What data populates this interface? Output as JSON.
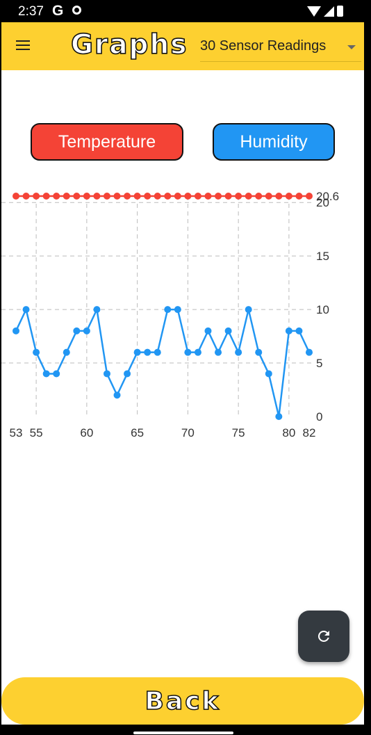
{
  "status": {
    "time": "2:37",
    "google": "G"
  },
  "appbar": {
    "title": "Graphs",
    "dropdown": "30 Sensor Readings"
  },
  "buttons": {
    "temperature": "Temperature",
    "humidity": "Humidity",
    "back": "Back"
  },
  "colors": {
    "accent": "#fdd030",
    "temperature": "#f44336",
    "humidity": "#2196f3"
  },
  "chart_data": {
    "type": "line",
    "x": [
      53,
      54,
      55,
      56,
      57,
      58,
      59,
      60,
      61,
      62,
      63,
      64,
      65,
      66,
      67,
      68,
      69,
      70,
      71,
      72,
      73,
      74,
      75,
      76,
      77,
      78,
      79,
      80,
      81,
      82
    ],
    "series": [
      {
        "name": "Temperature",
        "color": "#f44336",
        "values": [
          20.6,
          20.6,
          20.6,
          20.6,
          20.6,
          20.6,
          20.6,
          20.6,
          20.6,
          20.6,
          20.6,
          20.6,
          20.6,
          20.6,
          20.6,
          20.6,
          20.6,
          20.6,
          20.6,
          20.6,
          20.6,
          20.6,
          20.6,
          20.6,
          20.6,
          20.6,
          20.6,
          20.6,
          20.6,
          20.6
        ]
      },
      {
        "name": "Humidity",
        "color": "#2196f3",
        "values": [
          8,
          10,
          6,
          4,
          4,
          6,
          8,
          8,
          10,
          4,
          2,
          4,
          6,
          6,
          6,
          10,
          10,
          6,
          6,
          8,
          6,
          8,
          6,
          10,
          6,
          4,
          0,
          8,
          8,
          6
        ]
      }
    ],
    "xticks": [
      "53",
      "55",
      "60",
      "65",
      "70",
      "75",
      "80",
      "82"
    ],
    "yticks": [
      "0",
      "5",
      "10",
      "15",
      "20"
    ],
    "ylim": [
      0,
      20.6
    ],
    "top_label": "20.6",
    "grid": true
  }
}
